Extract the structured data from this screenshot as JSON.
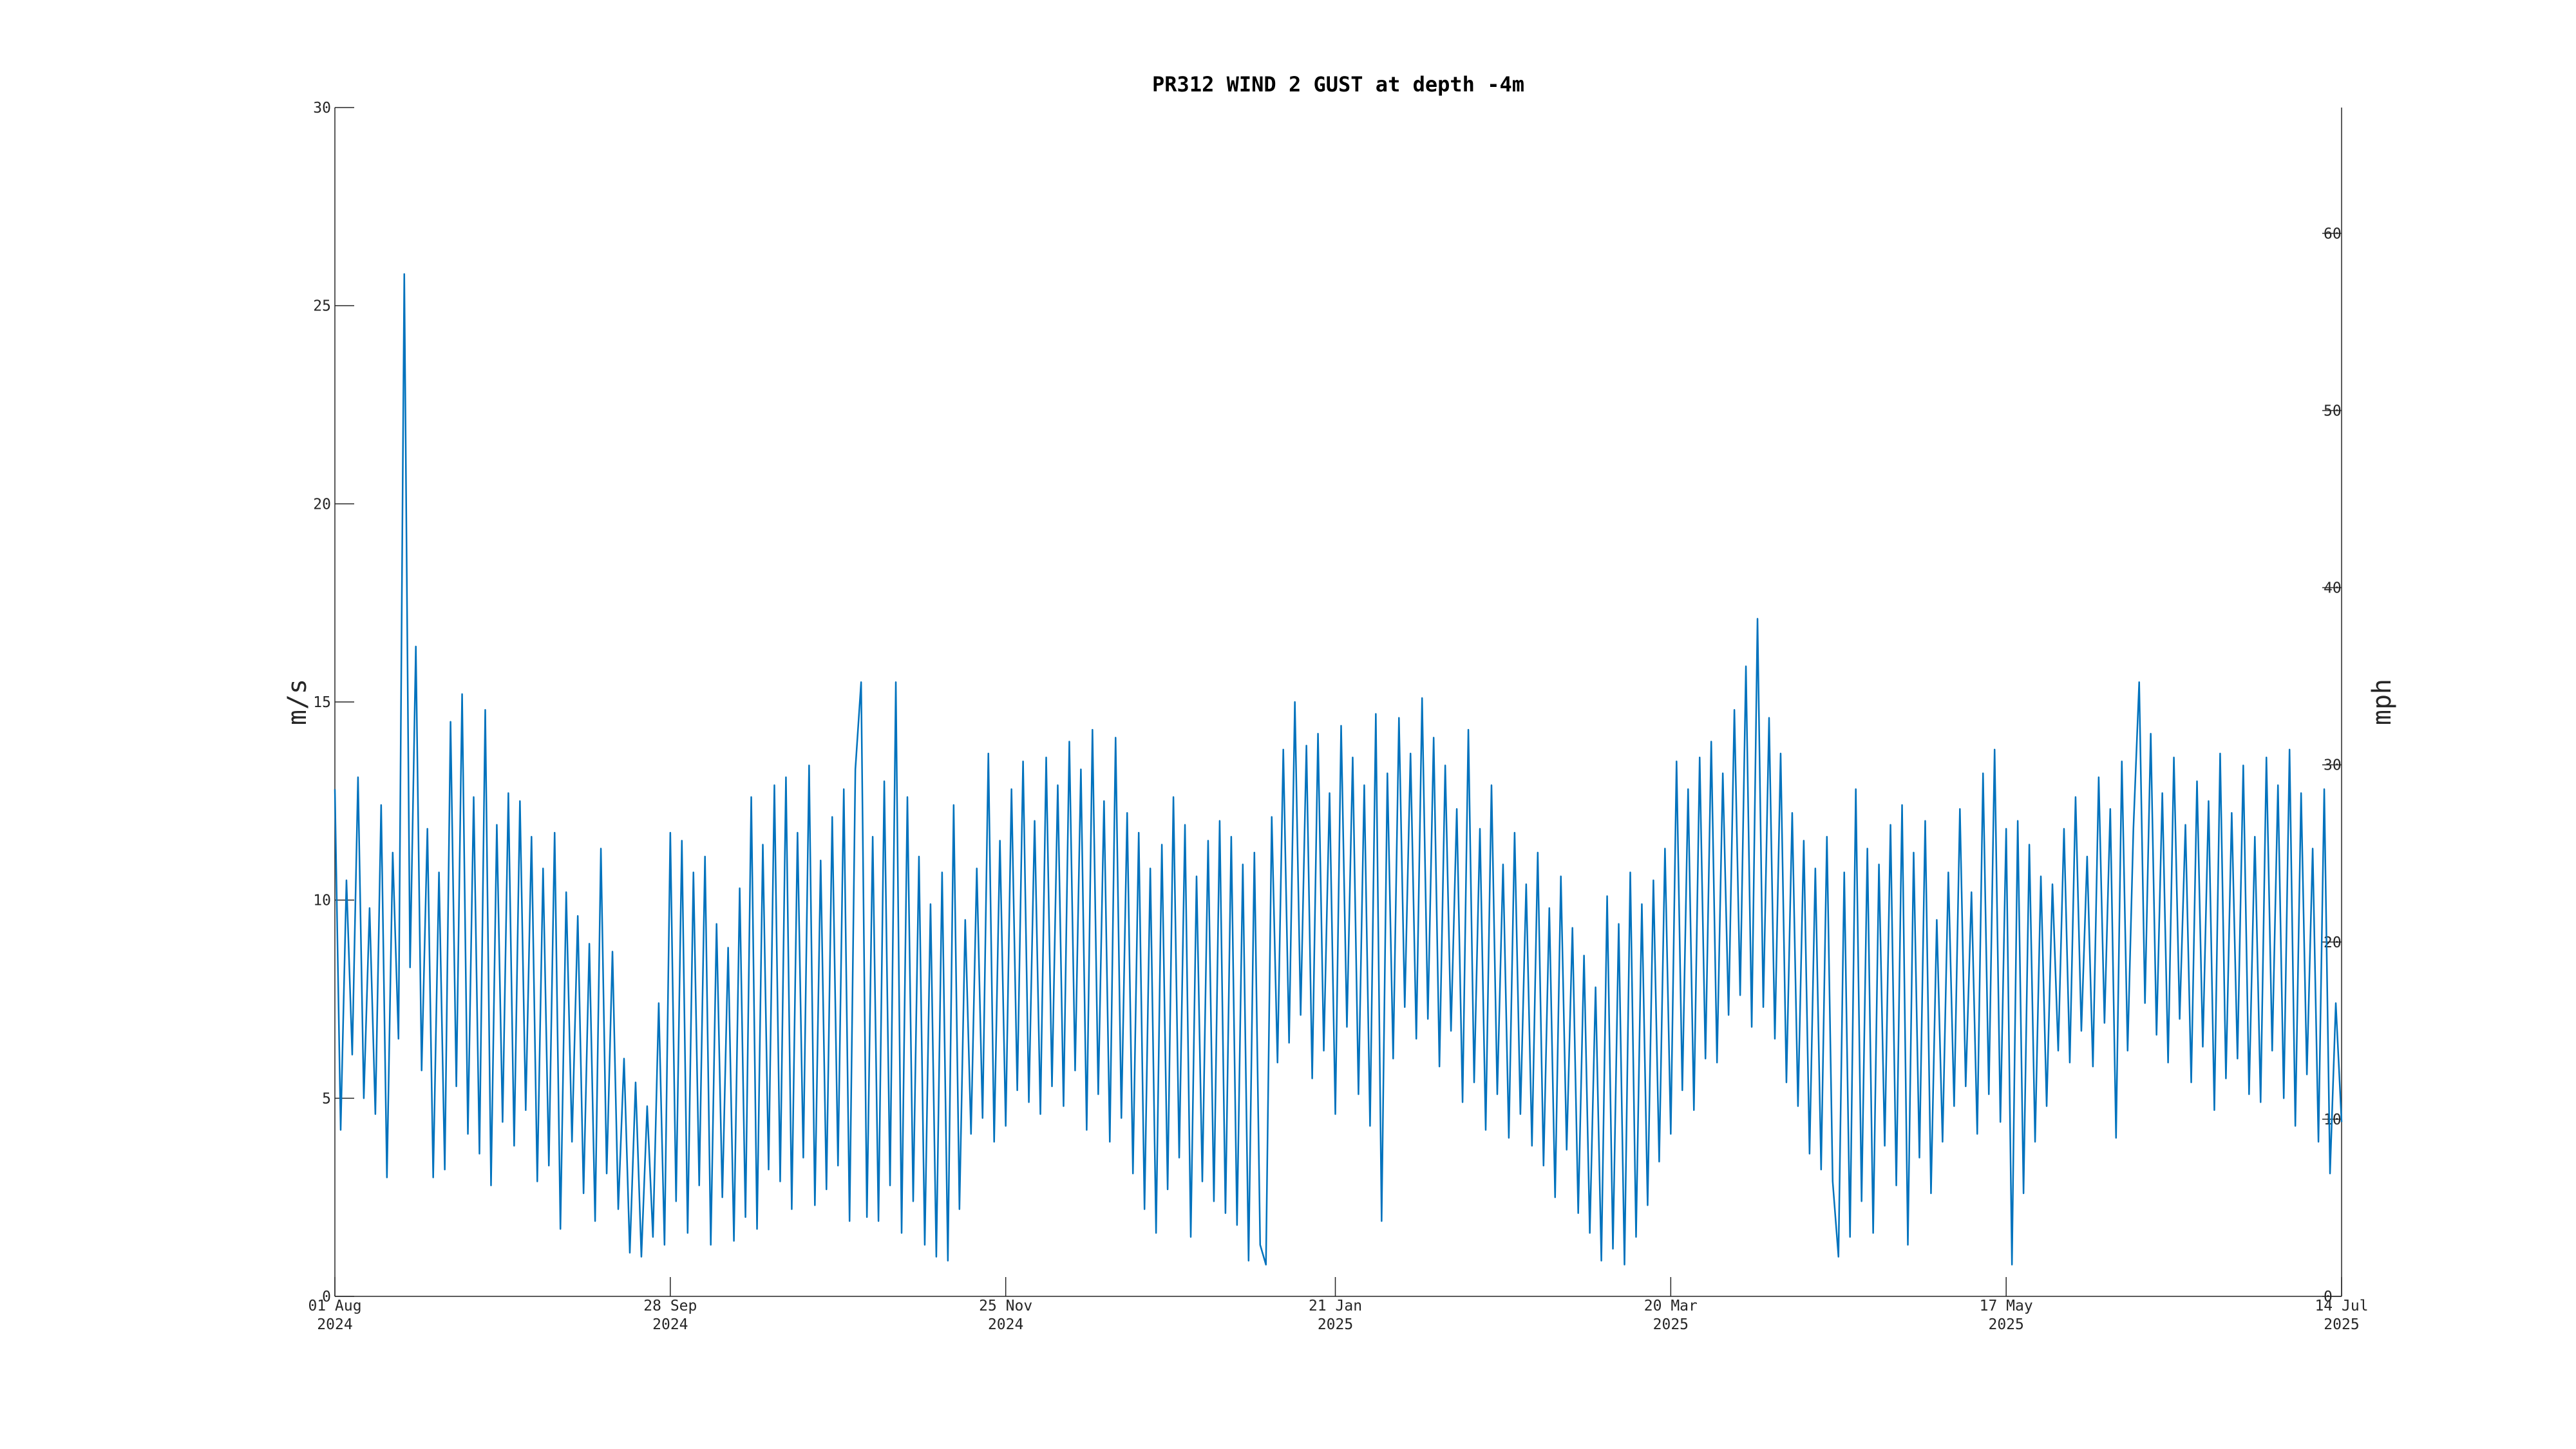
{
  "chart_data": {
    "type": "line",
    "title": "PR312 WIND 2 GUST at depth -4m",
    "ylabel": "m/s",
    "y2label": "mph",
    "xlim": [
      "2024-08-01",
      "2025-07-14"
    ],
    "xticks": [
      {
        "value": "2024-08-01",
        "label": "01 Aug 2024"
      },
      {
        "value": "2024-09-28",
        "label": "28 Sep 2024"
      },
      {
        "value": "2024-11-25",
        "label": "25 Nov 2024"
      },
      {
        "value": "2025-01-21",
        "label": "21 Jan 2025"
      },
      {
        "value": "2025-03-20",
        "label": "20 Mar 2025"
      },
      {
        "value": "2025-05-17",
        "label": "17 May 2025"
      },
      {
        "value": "2025-07-14",
        "label": "14 Jul 2025"
      }
    ],
    "ylim": [
      0,
      30
    ],
    "yticks": [
      0,
      5,
      10,
      15,
      20,
      25,
      30
    ],
    "y2lim": [
      0,
      67.1
    ],
    "y2ticks": [
      0,
      10,
      20,
      30,
      40,
      50,
      60
    ],
    "grid": false,
    "x": [
      "2024-08-01",
      "2024-08-02",
      "2024-08-03",
      "2024-08-04",
      "2024-08-05",
      "2024-08-06",
      "2024-08-07",
      "2024-08-08",
      "2024-08-09",
      "2024-08-10",
      "2024-08-11",
      "2024-08-12",
      "2024-08-13",
      "2024-08-14",
      "2024-08-15",
      "2024-08-16",
      "2024-08-17",
      "2024-08-18",
      "2024-08-19",
      "2024-08-20",
      "2024-08-21",
      "2024-08-22",
      "2024-08-23",
      "2024-08-24",
      "2024-08-25",
      "2024-08-26",
      "2024-08-27",
      "2024-08-28",
      "2024-08-29",
      "2024-08-30",
      "2024-08-31",
      "2024-09-01",
      "2024-09-02",
      "2024-09-03",
      "2024-09-04",
      "2024-09-05",
      "2024-09-06",
      "2024-09-07",
      "2024-09-08",
      "2024-09-09",
      "2024-09-10",
      "2024-09-11",
      "2024-09-12",
      "2024-09-13",
      "2024-09-14",
      "2024-09-15",
      "2024-09-16",
      "2024-09-17",
      "2024-09-18",
      "2024-09-19",
      "2024-09-20",
      "2024-09-21",
      "2024-09-22",
      "2024-09-23",
      "2024-09-24",
      "2024-09-25",
      "2024-09-26",
      "2024-09-27",
      "2024-09-28",
      "2024-09-29",
      "2024-09-30",
      "2024-10-01",
      "2024-10-02",
      "2024-10-03",
      "2024-10-04",
      "2024-10-05",
      "2024-10-06",
      "2024-10-07",
      "2024-10-08",
      "2024-10-09",
      "2024-10-10",
      "2024-10-11",
      "2024-10-12",
      "2024-10-13",
      "2024-10-14",
      "2024-10-15",
      "2024-10-16",
      "2024-10-17",
      "2024-10-18",
      "2024-10-19",
      "2024-10-20",
      "2024-10-21",
      "2024-10-22",
      "2024-10-23",
      "2024-10-24",
      "2024-10-25",
      "2024-10-26",
      "2024-10-27",
      "2024-10-28",
      "2024-10-29",
      "2024-10-30",
      "2024-10-31",
      "2024-11-01",
      "2024-11-02",
      "2024-11-03",
      "2024-11-04",
      "2024-11-05",
      "2024-11-06",
      "2024-11-07",
      "2024-11-08",
      "2024-11-09",
      "2024-11-10",
      "2024-11-11",
      "2024-11-12",
      "2024-11-13",
      "2024-11-14",
      "2024-11-15",
      "2024-11-16",
      "2024-11-17",
      "2024-11-18",
      "2024-11-19",
      "2024-11-20",
      "2024-11-21",
      "2024-11-22",
      "2024-11-23",
      "2024-11-24",
      "2024-11-25",
      "2024-11-26",
      "2024-11-27",
      "2024-11-28",
      "2024-11-29",
      "2024-11-30",
      "2024-12-01",
      "2024-12-02",
      "2024-12-03",
      "2024-12-04",
      "2024-12-05",
      "2024-12-06",
      "2024-12-07",
      "2024-12-08",
      "2024-12-09",
      "2024-12-10",
      "2024-12-11",
      "2024-12-12",
      "2024-12-13",
      "2024-12-14",
      "2024-12-15",
      "2024-12-16",
      "2024-12-17",
      "2024-12-18",
      "2024-12-19",
      "2024-12-20",
      "2024-12-21",
      "2024-12-22",
      "2024-12-23",
      "2024-12-24",
      "2024-12-25",
      "2024-12-26",
      "2024-12-27",
      "2024-12-28",
      "2024-12-29",
      "2024-12-30",
      "2024-12-31",
      "2025-01-01",
      "2025-01-02",
      "2025-01-03",
      "2025-01-04",
      "2025-01-05",
      "2025-01-06",
      "2025-01-07",
      "2025-01-08",
      "2025-01-09",
      "2025-01-10",
      "2025-01-11",
      "2025-01-12",
      "2025-01-13",
      "2025-01-14",
      "2025-01-15",
      "2025-01-16",
      "2025-01-17",
      "2025-01-18",
      "2025-01-19",
      "2025-01-20",
      "2025-01-21",
      "2025-01-22",
      "2025-01-23",
      "2025-01-24",
      "2025-01-25",
      "2025-01-26",
      "2025-01-27",
      "2025-01-28",
      "2025-01-29",
      "2025-01-30",
      "2025-01-31",
      "2025-02-01",
      "2025-02-02",
      "2025-02-03",
      "2025-02-04",
      "2025-02-05",
      "2025-02-06",
      "2025-02-07",
      "2025-02-08",
      "2025-02-09",
      "2025-02-10",
      "2025-02-11",
      "2025-02-12",
      "2025-02-13",
      "2025-02-14",
      "2025-02-15",
      "2025-02-16",
      "2025-02-17",
      "2025-02-18",
      "2025-02-19",
      "2025-02-20",
      "2025-02-21",
      "2025-02-22",
      "2025-02-23",
      "2025-02-24",
      "2025-02-25",
      "2025-02-26",
      "2025-02-27",
      "2025-02-28",
      "2025-03-01",
      "2025-03-02",
      "2025-03-03",
      "2025-03-04",
      "2025-03-05",
      "2025-03-06",
      "2025-03-07",
      "2025-03-08",
      "2025-03-09",
      "2025-03-10",
      "2025-03-11",
      "2025-03-12",
      "2025-03-13",
      "2025-03-14",
      "2025-03-15",
      "2025-03-16",
      "2025-03-17",
      "2025-03-18",
      "2025-03-19",
      "2025-03-20",
      "2025-03-21",
      "2025-03-22",
      "2025-03-23",
      "2025-03-24",
      "2025-03-25",
      "2025-03-26",
      "2025-03-27",
      "2025-03-28",
      "2025-03-29",
      "2025-03-30",
      "2025-03-31",
      "2025-04-01",
      "2025-04-02",
      "2025-04-03",
      "2025-04-04",
      "2025-04-05",
      "2025-04-06",
      "2025-04-07",
      "2025-04-08",
      "2025-04-09",
      "2025-04-10",
      "2025-04-11",
      "2025-04-12",
      "2025-04-13",
      "2025-04-14",
      "2025-04-15",
      "2025-04-16",
      "2025-04-17",
      "2025-04-18",
      "2025-04-19",
      "2025-04-20",
      "2025-04-21",
      "2025-04-22",
      "2025-04-23",
      "2025-04-24",
      "2025-04-25",
      "2025-04-26",
      "2025-04-27",
      "2025-04-28",
      "2025-04-29",
      "2025-04-30",
      "2025-05-01",
      "2025-05-02",
      "2025-05-03",
      "2025-05-04",
      "2025-05-05",
      "2025-05-06",
      "2025-05-07",
      "2025-05-08",
      "2025-05-09",
      "2025-05-10",
      "2025-05-11",
      "2025-05-12",
      "2025-05-13",
      "2025-05-14",
      "2025-05-15",
      "2025-05-16",
      "2025-05-17",
      "2025-05-18",
      "2025-05-19",
      "2025-05-20",
      "2025-05-21",
      "2025-05-22",
      "2025-05-23",
      "2025-05-24",
      "2025-05-25",
      "2025-05-26",
      "2025-05-27",
      "2025-05-28",
      "2025-05-29",
      "2025-05-30",
      "2025-05-31",
      "2025-06-01",
      "2025-06-02",
      "2025-06-03",
      "2025-06-04",
      "2025-06-05",
      "2025-06-06",
      "2025-06-07",
      "2025-06-08",
      "2025-06-09",
      "2025-06-10",
      "2025-06-11",
      "2025-06-12",
      "2025-06-13",
      "2025-06-14",
      "2025-06-15",
      "2025-06-16",
      "2025-06-17",
      "2025-06-18",
      "2025-06-19",
      "2025-06-20",
      "2025-06-21",
      "2025-06-22",
      "2025-06-23",
      "2025-06-24",
      "2025-06-25",
      "2025-06-26",
      "2025-06-27",
      "2025-06-28",
      "2025-06-29",
      "2025-06-30",
      "2025-07-01",
      "2025-07-02",
      "2025-07-03",
      "2025-07-04",
      "2025-07-05",
      "2025-07-06",
      "2025-07-07",
      "2025-07-08",
      "2025-07-09",
      "2025-07-10",
      "2025-07-11",
      "2025-07-12",
      "2025-07-13",
      "2025-07-14"
    ],
    "series": [
      {
        "color": "#0072bd",
        "values": [
          12.8,
          4.2,
          10.5,
          6.1,
          13.1,
          5.0,
          9.8,
          4.6,
          12.4,
          3.0,
          11.2,
          6.5,
          25.8,
          8.3,
          16.4,
          5.7,
          11.8,
          3.0,
          10.7,
          3.2,
          14.5,
          5.3,
          15.2,
          4.1,
          12.6,
          3.6,
          14.8,
          2.8,
          11.9,
          4.4,
          12.7,
          3.8,
          12.5,
          4.7,
          11.6,
          2.9,
          10.8,
          3.3,
          11.7,
          1.7,
          10.2,
          3.9,
          9.6,
          2.6,
          8.9,
          1.9,
          11.3,
          3.1,
          8.7,
          2.2,
          6.0,
          1.1,
          5.4,
          1.0,
          4.8,
          1.5,
          7.4,
          1.3,
          11.7,
          2.4,
          11.5,
          1.6,
          10.7,
          2.8,
          11.1,
          1.3,
          9.4,
          2.5,
          8.8,
          1.4,
          10.3,
          2.0,
          12.6,
          1.7,
          11.4,
          3.2,
          12.9,
          2.9,
          13.1,
          2.2,
          11.7,
          3.5,
          13.4,
          2.3,
          11.0,
          2.7,
          12.1,
          3.3,
          12.8,
          1.9,
          13.3,
          15.5,
          2.0,
          11.6,
          1.9,
          13.0,
          2.8,
          15.5,
          1.6,
          12.6,
          2.4,
          11.1,
          1.3,
          9.9,
          1.0,
          10.7,
          0.9,
          12.4,
          2.2,
          9.5,
          4.1,
          10.8,
          4.5,
          13.7,
          3.9,
          11.5,
          4.3,
          12.8,
          5.2,
          13.5,
          4.9,
          12.0,
          4.6,
          13.6,
          5.3,
          12.9,
          4.8,
          14.0,
          5.7,
          13.3,
          4.2,
          14.3,
          5.1,
          12.5,
          3.9,
          14.1,
          4.5,
          12.2,
          3.1,
          11.7,
          2.2,
          10.8,
          1.6,
          11.4,
          2.7,
          12.6,
          3.5,
          11.9,
          1.5,
          10.6,
          2.9,
          11.5,
          2.4,
          12.0,
          2.1,
          11.6,
          1.8,
          10.9,
          0.9,
          11.2,
          1.3,
          0.8,
          12.1,
          5.9,
          13.8,
          6.4,
          15.0,
          7.1,
          13.9,
          5.5,
          14.2,
          6.2,
          12.7,
          4.6,
          14.4,
          6.8,
          13.6,
          5.1,
          12.9,
          4.3,
          14.7,
          1.9,
          13.2,
          6.0,
          14.6,
          7.3,
          13.7,
          6.5,
          15.1,
          7.0,
          14.1,
          5.8,
          13.4,
          6.7,
          12.3,
          4.9,
          14.3,
          5.4,
          11.8,
          4.2,
          12.9,
          5.1,
          10.9,
          4.0,
          11.7,
          4.6,
          10.4,
          3.8,
          11.2,
          3.3,
          9.8,
          2.5,
          10.6,
          3.7,
          9.3,
          2.1,
          8.6,
          1.6,
          7.8,
          0.9,
          10.1,
          1.2,
          9.4,
          0.8,
          10.7,
          1.5,
          9.9,
          2.3,
          10.5,
          3.4,
          11.3,
          4.1,
          13.5,
          5.2,
          12.8,
          4.7,
          13.6,
          6.0,
          14.0,
          5.9,
          13.2,
          7.1,
          14.8,
          7.6,
          15.9,
          6.8,
          17.1,
          7.3,
          14.6,
          6.5,
          13.7,
          5.4,
          12.2,
          4.8,
          11.5,
          3.6,
          10.8,
          3.2,
          11.6,
          2.9,
          1.0,
          10.7,
          1.5,
          12.8,
          2.4,
          11.3,
          1.6,
          10.9,
          3.8,
          11.9,
          2.8,
          12.4,
          1.3,
          11.2,
          3.5,
          12.0,
          2.6,
          9.5,
          3.9,
          10.7,
          4.8,
          12.3,
          5.3,
          10.2,
          4.1,
          13.2,
          5.1,
          13.8,
          4.4,
          11.8,
          0.8,
          12.0,
          2.6,
          11.4,
          3.9,
          10.6,
          4.8,
          10.4,
          6.2,
          11.8,
          5.9,
          12.6,
          6.7,
          11.1,
          5.8,
          13.1,
          6.9,
          12.3,
          4.0,
          13.5,
          6.2,
          11.8,
          15.5,
          7.4,
          14.2,
          6.6,
          12.7,
          5.9,
          13.6,
          7.0,
          11.9,
          5.4,
          13.0,
          6.3,
          12.5,
          4.7,
          13.7,
          5.5,
          12.2,
          6.0,
          13.4,
          5.1,
          11.6,
          4.9,
          13.6,
          6.2,
          12.9,
          5.0,
          13.8,
          4.3,
          12.7,
          5.6,
          11.3,
          3.9,
          12.8,
          3.1,
          7.4,
          4.4
        ]
      }
    ]
  }
}
